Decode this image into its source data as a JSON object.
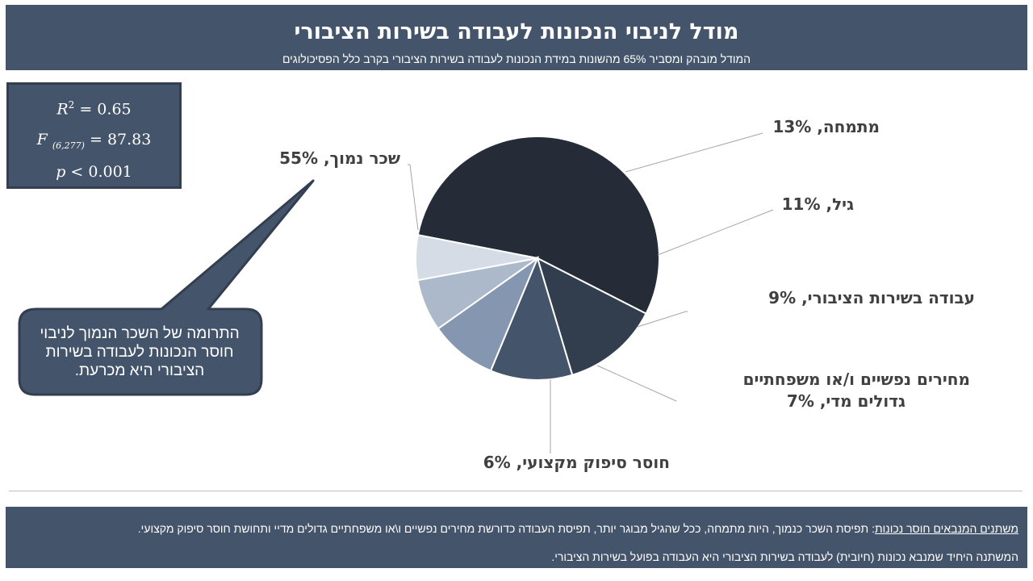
{
  "header": {
    "title": "מודל לניבוי הנכונות לעבודה בשירות הציבורי",
    "subtitle": "המודל מובהק ומסביר 65% מהשונות במידת הנכונות לעבודה בשירות הציבורי בקרב כלל הפסיכולוגים"
  },
  "stats": {
    "r2_label": "R",
    "r2_exp": "2",
    "r2_value": " = 0.65",
    "f_label": "F",
    "f_df": "(6,277)",
    "f_value": " = 87.83",
    "p_label": "p",
    "p_value": " < 0.001"
  },
  "callout": {
    "text": "התרומה של השכר הנמוך לניבוי חוסר הנכונות לעבודה בשירות הציבורי היא מכרעת."
  },
  "chart_data": {
    "type": "pie",
    "slices": [
      {
        "label": "שכר נמוך, 55%",
        "value": 55,
        "color": "#252b37"
      },
      {
        "label": "מתמחה, 13%",
        "value": 13,
        "color": "#323d4e"
      },
      {
        "label": "גיל, 11%",
        "value": 11,
        "color": "#44546a"
      },
      {
        "label": "עבודה בשירות הציבורי, 9%",
        "value": 9,
        "color": "#8496b0"
      },
      {
        "label": "מחירים נפשיים ו/או משפחתיים גדולים מדי, 7%",
        "value": 7,
        "color": "#acb9ca"
      },
      {
        "label": "חוסר סיפוק מקצועי, 6%",
        "value": 6,
        "color": "#d6dce5"
      }
    ]
  },
  "footer": {
    "line1_underlined": "משתנים המנבאים חוסר נכונות",
    "line1_rest": ": תפיסת השכר כנמוך, היות מתמחה, ככל שהגיל מבוגר יותר, תפיסת העבודה כדורשת מחירים נפשיים ו\\או משפחתיים גדולים מדיי ותחושת חוסר סיפוק מקצועי.",
    "line2": "המשתנה היחיד שמנבא נכונות (חיובית) לעבודה בשירות הציבורי היא העבודה בפועל בשירות הציבורי."
  }
}
